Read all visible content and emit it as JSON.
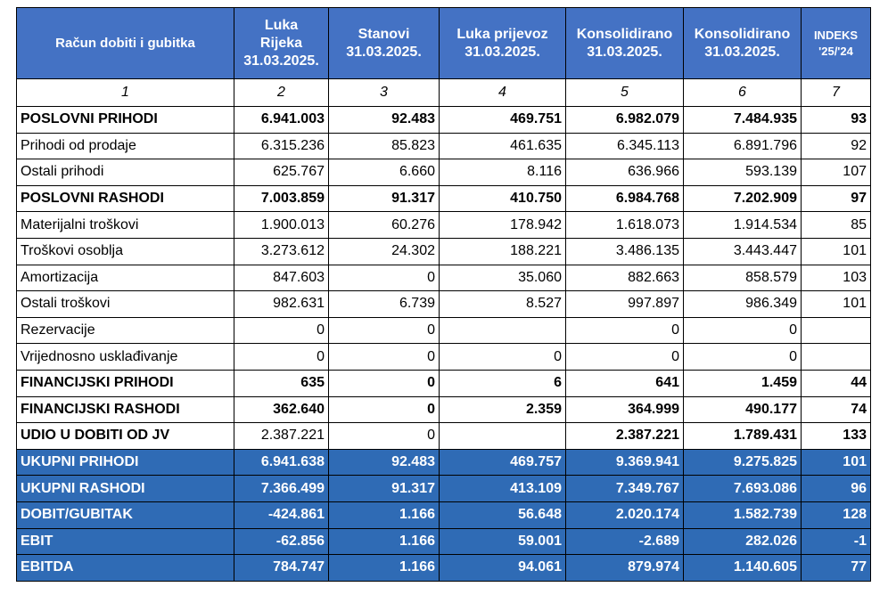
{
  "table": {
    "header": [
      [
        "Račun dobiti i gubitka"
      ],
      [
        "Luka",
        "Rijeka",
        "31.03.2025."
      ],
      [
        "Stanovi",
        "31.03.2025."
      ],
      [
        "Luka prijevoz",
        "31.03.2025."
      ],
      [
        "Konsolidirano",
        "31.03.2025."
      ],
      [
        "Konsolidirano",
        "31.03.2025."
      ],
      [
        "INDEKS",
        "'25/'24"
      ]
    ],
    "column_numbers": [
      "1",
      "2",
      "3",
      "4",
      "5",
      "6",
      "7"
    ],
    "rows": [
      {
        "style": "bold",
        "label": "POSLOVNI PRIHODI",
        "cells": [
          "6.941.003",
          "92.483",
          "469.751",
          "6.982.079",
          "7.484.935",
          "93"
        ]
      },
      {
        "style": "normal",
        "label": "Prihodi od prodaje",
        "cells": [
          "6.315.236",
          "85.823",
          "461.635",
          "6.345.113",
          "6.891.796",
          "92"
        ]
      },
      {
        "style": "normal",
        "label": "Ostali prihodi",
        "cells": [
          "625.767",
          "6.660",
          "8.116",
          "636.966",
          "593.139",
          "107"
        ]
      },
      {
        "style": "bold",
        "label": "POSLOVNI RASHODI",
        "cells": [
          "7.003.859",
          "91.317",
          "410.750",
          "6.984.768",
          "7.202.909",
          "97"
        ]
      },
      {
        "style": "normal",
        "label": "Materijalni troškovi",
        "cells": [
          "1.900.013",
          "60.276",
          "178.942",
          "1.618.073",
          "1.914.534",
          "85"
        ]
      },
      {
        "style": "normal",
        "label": "Troškovi osoblja",
        "cells": [
          "3.273.612",
          "24.302",
          "188.221",
          "3.486.135",
          "3.443.447",
          "101"
        ]
      },
      {
        "style": "normal",
        "label": "Amortizacija",
        "cells": [
          "847.603",
          "0",
          "35.060",
          "882.663",
          "858.579",
          "103"
        ]
      },
      {
        "style": "normal",
        "label": "Ostali troškovi",
        "cells": [
          "982.631",
          "6.739",
          "8.527",
          "997.897",
          "986.349",
          "101"
        ]
      },
      {
        "style": "normal",
        "label": "Rezervacije",
        "cells": [
          "0",
          "0",
          null,
          "0",
          "0",
          null
        ]
      },
      {
        "style": "normal",
        "label": "Vrijednosno usklađivanje",
        "cells": [
          "0",
          "0",
          "0",
          "0",
          "0",
          null
        ]
      },
      {
        "style": "bold",
        "label": "FINANCIJSKI PRIHODI",
        "cells": [
          "635",
          "0",
          "6",
          "641",
          "1.459",
          "44"
        ]
      },
      {
        "style": "bold",
        "label": "FINANCIJSKI RASHODI",
        "cells": [
          "362.640",
          "0",
          "2.359",
          "364.999",
          "490.177",
          "74"
        ]
      },
      {
        "style": "mixed",
        "label": "UDIO U DOBITI OD JV",
        "cells": [
          "2.387.221",
          "0",
          null,
          "2.387.221",
          "1.789.431",
          "133"
        ]
      },
      {
        "style": "total",
        "label": "UKUPNI PRIHODI",
        "cells": [
          "6.941.638",
          "92.483",
          "469.757",
          "9.369.941",
          "9.275.825",
          "101"
        ]
      },
      {
        "style": "total",
        "label": "UKUPNI RASHODI",
        "cells": [
          "7.366.499",
          "91.317",
          "413.109",
          "7.349.767",
          "7.693.086",
          "96"
        ]
      },
      {
        "style": "total",
        "label": "DOBIT/GUBITAK",
        "cells": [
          "-424.861",
          "1.166",
          "56.648",
          "2.020.174",
          "1.582.739",
          "128"
        ]
      },
      {
        "style": "total",
        "label": "EBIT",
        "cells": [
          "-62.856",
          "1.166",
          "59.001",
          "-2.689",
          "282.026",
          "-1"
        ]
      },
      {
        "style": "total",
        "label": "EBITDA",
        "cells": [
          "784.747",
          "1.166",
          "94.061",
          "879.974",
          "1.140.605",
          "77"
        ]
      }
    ]
  }
}
